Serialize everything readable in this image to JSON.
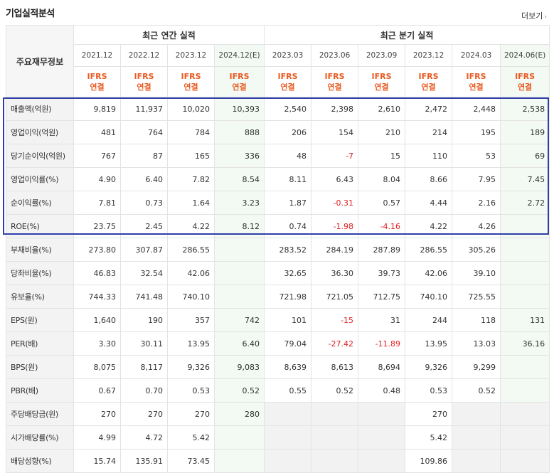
{
  "title": "기업실적분석",
  "more_label": "더보기",
  "header": {
    "item_col": "주요재무정보",
    "annual_label": "최근 연간 실적",
    "quarterly_label": "최근 분기 실적",
    "annual_periods": [
      "2021.12",
      "2022.12",
      "2023.12",
      "2024.12(E)"
    ],
    "quarterly_periods": [
      "2023.03",
      "2023.06",
      "2023.09",
      "2023.12",
      "2024.03",
      "2024.06(E)"
    ],
    "basis_line1": "IFRS",
    "basis_line2": "연결"
  },
  "rows": [
    {
      "label": "매출액(억원)",
      "annual": [
        "9,819",
        "11,937",
        "10,020",
        "10,393"
      ],
      "quarterly": [
        "2,540",
        "2,398",
        "2,610",
        "2,472",
        "2,448",
        "2,538"
      ]
    },
    {
      "label": "영업이익(억원)",
      "annual": [
        "481",
        "764",
        "784",
        "888"
      ],
      "quarterly": [
        "206",
        "154",
        "210",
        "214",
        "195",
        "189"
      ]
    },
    {
      "label": "당기순이익(억원)",
      "annual": [
        "767",
        "87",
        "165",
        "336"
      ],
      "quarterly": [
        "48",
        "-7",
        "15",
        "110",
        "53",
        "69"
      ]
    },
    {
      "label": "영업이익률(%)",
      "annual": [
        "4.90",
        "6.40",
        "7.82",
        "8.54"
      ],
      "quarterly": [
        "8.11",
        "6.43",
        "8.04",
        "8.66",
        "7.95",
        "7.45"
      ]
    },
    {
      "label": "순이익률(%)",
      "annual": [
        "7.81",
        "0.73",
        "1.64",
        "3.23"
      ],
      "quarterly": [
        "1.87",
        "-0.31",
        "0.57",
        "4.44",
        "2.16",
        "2.72"
      ]
    },
    {
      "label": "ROE(%)",
      "annual": [
        "23.75",
        "2.45",
        "4.22",
        "8.12"
      ],
      "quarterly": [
        "0.74",
        "-1.98",
        "-4.16",
        "4.22",
        "4.26",
        ""
      ]
    },
    {
      "label": "부채비율(%)",
      "annual": [
        "273.80",
        "307.87",
        "286.55",
        ""
      ],
      "quarterly": [
        "283.52",
        "284.19",
        "287.89",
        "286.55",
        "305.26",
        ""
      ]
    },
    {
      "label": "당좌비율(%)",
      "annual": [
        "46.83",
        "32.54",
        "42.06",
        ""
      ],
      "quarterly": [
        "32.65",
        "36.30",
        "39.73",
        "42.06",
        "39.10",
        ""
      ]
    },
    {
      "label": "유보율(%)",
      "annual": [
        "744.33",
        "741.48",
        "740.10",
        ""
      ],
      "quarterly": [
        "721.98",
        "721.05",
        "712.75",
        "740.10",
        "725.55",
        ""
      ]
    },
    {
      "label": "EPS(원)",
      "annual": [
        "1,640",
        "190",
        "357",
        "742"
      ],
      "quarterly": [
        "101",
        "-15",
        "31",
        "244",
        "118",
        "131"
      ]
    },
    {
      "label": "PER(배)",
      "annual": [
        "3.30",
        "30.11",
        "13.95",
        "6.40"
      ],
      "quarterly": [
        "79.04",
        "-27.42",
        "-11.89",
        "13.95",
        "13.03",
        "36.16"
      ]
    },
    {
      "label": "BPS(원)",
      "annual": [
        "8,075",
        "8,117",
        "9,326",
        "9,083"
      ],
      "quarterly": [
        "8,639",
        "8,613",
        "8,694",
        "9,326",
        "9,299",
        ""
      ]
    },
    {
      "label": "PBR(배)",
      "annual": [
        "0.67",
        "0.70",
        "0.53",
        "0.52"
      ],
      "quarterly": [
        "0.55",
        "0.52",
        "0.48",
        "0.53",
        "0.52",
        ""
      ]
    },
    {
      "label": "주당배당금(원)",
      "annual": [
        "270",
        "270",
        "270",
        "280"
      ],
      "quarterly": [
        "",
        "",
        "",
        "270",
        "",
        ""
      ]
    },
    {
      "label": "시가배당률(%)",
      "annual": [
        "4.99",
        "4.72",
        "5.42",
        ""
      ],
      "quarterly": [
        "",
        "",
        "",
        "5.42",
        "",
        ""
      ]
    },
    {
      "label": "배당성향(%)",
      "annual": [
        "15.74",
        "135.91",
        "73.45",
        ""
      ],
      "quarterly": [
        "",
        "",
        "",
        "109.86",
        "",
        ""
      ]
    }
  ]
}
